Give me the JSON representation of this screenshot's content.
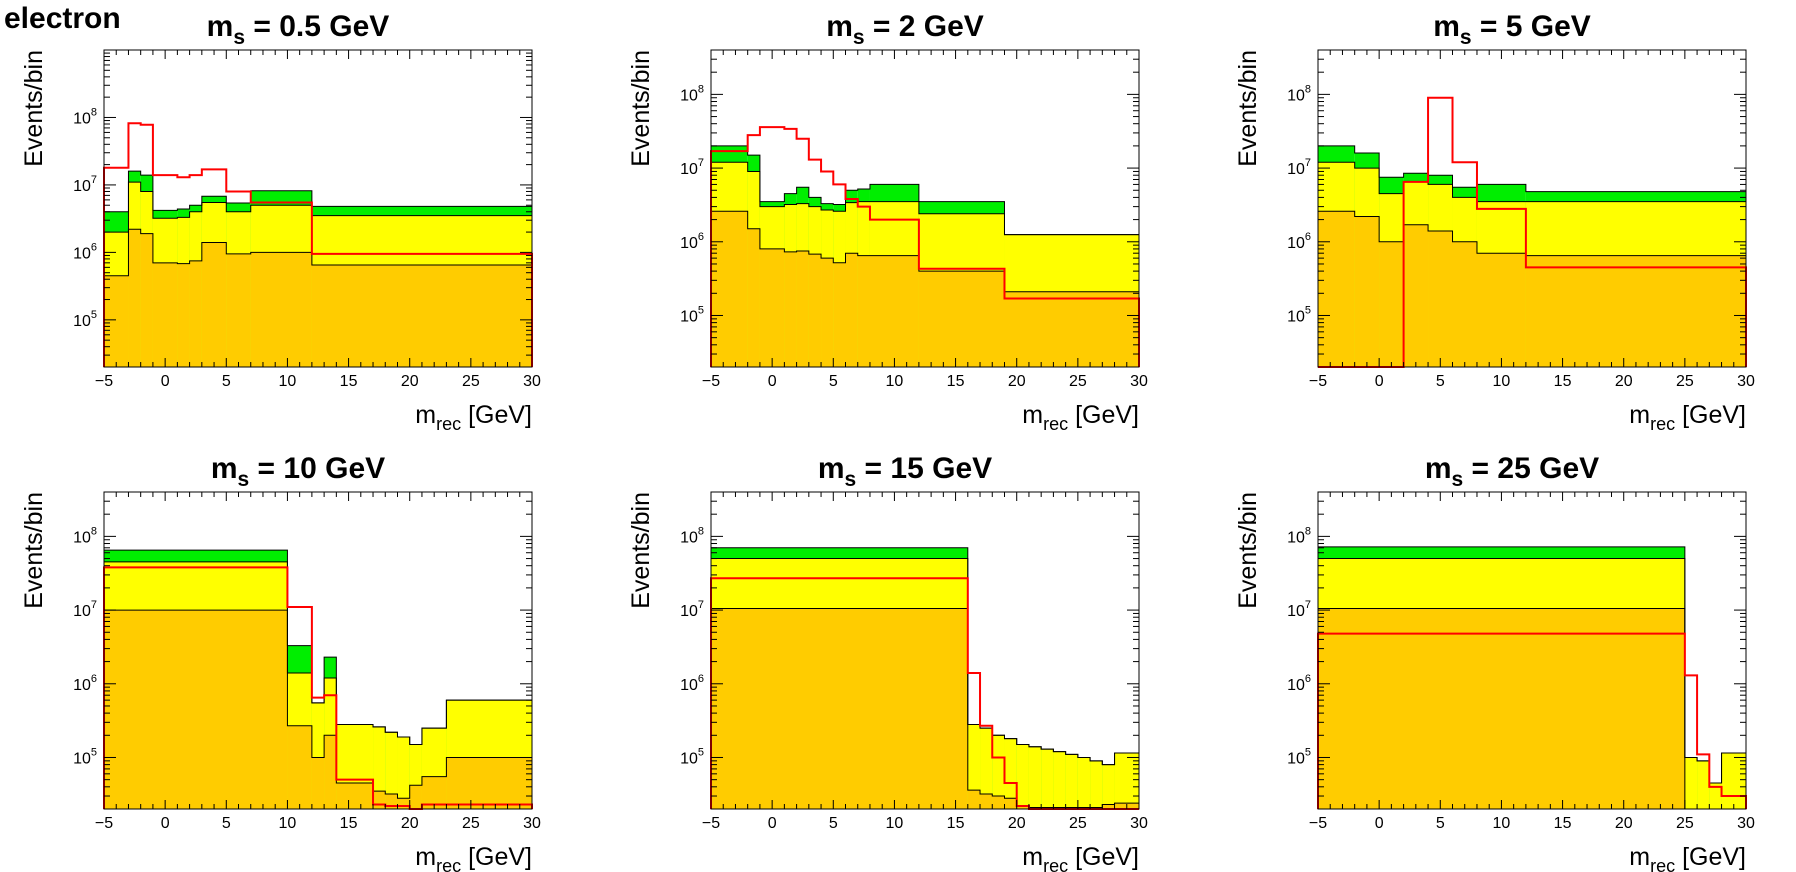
{
  "figure_label": "electron",
  "colors": {
    "stack_bottom": "#ffcc00",
    "stack_middle": "#ffff00",
    "stack_top": "#00ee00",
    "signal_line": "#ff0000",
    "outline": "#000000"
  },
  "chart_data": [
    {
      "type": "area",
      "title": "m_s = 0.5 GeV",
      "title_prefix": "m",
      "title_sub": "s",
      "title_rest": " = 0.5 GeV",
      "ylabel": "Events/bin",
      "xlabel_main": "m",
      "xlabel_sub": "rec",
      "xlabel_rest": " [GeV]",
      "xlim": [
        -5,
        30
      ],
      "ylim": [
        20000,
        1000000000
      ],
      "log_y": true,
      "grid": false,
      "x_ticks": [
        -5,
        0,
        5,
        10,
        15,
        20,
        25,
        30
      ],
      "y_ticks": [
        100000,
        1000000,
        10000000,
        100000000
      ],
      "y_tick_exponents": [
        "5",
        "6",
        "7",
        "8"
      ],
      "y_tick_base": "10",
      "bin_edges": [
        -5,
        -3,
        -2,
        -1,
        1,
        2,
        3,
        5,
        7,
        12,
        30
      ],
      "stack": [
        {
          "color_key": "stack_bottom",
          "values": [
            450000,
            2200000,
            1900000,
            700000,
            680000,
            750000,
            1400000,
            950000,
            1000000,
            650000
          ]
        },
        {
          "color_key": "stack_middle",
          "values": [
            2000000,
            11000000,
            8000000,
            3200000,
            3300000,
            4000000,
            5500000,
            4000000,
            5000000,
            3500000
          ]
        },
        {
          "color_key": "stack_top",
          "values": [
            4000000,
            16000000,
            14000000,
            4200000,
            4400000,
            5000000,
            6800000,
            5400000,
            8200000,
            4800000
          ]
        }
      ],
      "signal": [
        18000000,
        82000000,
        78000000,
        14000000,
        13000000,
        14000000,
        17000000,
        8000000,
        5500000,
        950000
      ]
    },
    {
      "type": "area",
      "title": "m_s = 2 GeV",
      "title_prefix": "m",
      "title_sub": "s",
      "title_rest": " = 2 GeV",
      "ylabel": "Events/bin",
      "xlabel_main": "m",
      "xlabel_sub": "rec",
      "xlabel_rest": " [GeV]",
      "xlim": [
        -5,
        30
      ],
      "ylim": [
        20000,
        400000000
      ],
      "log_y": true,
      "grid": false,
      "x_ticks": [
        -5,
        0,
        5,
        10,
        15,
        20,
        25,
        30
      ],
      "y_ticks": [
        100000,
        1000000,
        10000000,
        100000000
      ],
      "y_tick_exponents": [
        "5",
        "6",
        "7",
        "8"
      ],
      "y_tick_base": "10",
      "bin_edges": [
        -5,
        -2,
        -1,
        1,
        2,
        3,
        4,
        5,
        6,
        7,
        8,
        12,
        19,
        30
      ],
      "stack": [
        {
          "color_key": "stack_bottom",
          "values": [
            2600000,
            1500000,
            800000,
            730000,
            750000,
            680000,
            600000,
            520000,
            700000,
            650000,
            650000,
            400000,
            210000
          ]
        },
        {
          "color_key": "stack_middle",
          "values": [
            12000000,
            9000000,
            3000000,
            3200000,
            3300000,
            3000000,
            2700000,
            2600000,
            3400000,
            3500000,
            3500000,
            2400000,
            1250000
          ]
        },
        {
          "color_key": "stack_top",
          "values": [
            20000000,
            15000000,
            3500000,
            4500000,
            5500000,
            4000000,
            3300000,
            3200000,
            5000000,
            5200000,
            6000000,
            3500000,
            1250000
          ]
        }
      ],
      "signal": [
        17000000,
        28000000,
        36000000,
        34000000,
        25000000,
        13000000,
        9000000,
        6000000,
        3800000,
        3000000,
        2000000,
        430000,
        170000
      ]
    },
    {
      "type": "area",
      "title": "m_s = 5 GeV",
      "title_prefix": "m",
      "title_sub": "s",
      "title_rest": " = 5 GeV",
      "ylabel": "Events/bin",
      "xlabel_main": "m",
      "xlabel_sub": "rec",
      "xlabel_rest": " [GeV]",
      "xlim": [
        -5,
        30
      ],
      "ylim": [
        20000,
        400000000
      ],
      "log_y": true,
      "grid": false,
      "x_ticks": [
        -5,
        0,
        5,
        10,
        15,
        20,
        25,
        30
      ],
      "y_ticks": [
        100000,
        1000000,
        10000000,
        100000000
      ],
      "y_tick_exponents": [
        "5",
        "6",
        "7",
        "8"
      ],
      "y_tick_base": "10",
      "bin_edges": [
        -5,
        -2,
        0,
        2,
        4,
        6,
        8,
        12,
        30
      ],
      "stack": [
        {
          "color_key": "stack_bottom",
          "values": [
            2600000,
            2200000,
            1000000,
            1700000,
            1400000,
            1000000,
            700000,
            650000
          ]
        },
        {
          "color_key": "stack_middle",
          "values": [
            12000000,
            10000000,
            4500000,
            6500000,
            6000000,
            4000000,
            3500000,
            3500000
          ]
        },
        {
          "color_key": "stack_top",
          "values": [
            20000000,
            16000000,
            7500000,
            8500000,
            8000000,
            5500000,
            6000000,
            4800000
          ]
        }
      ],
      "signal": [
        20000,
        20000,
        20000,
        6500000,
        90000000,
        12000000,
        2800000,
        450000
      ]
    },
    {
      "type": "area",
      "title": "m_s = 10 GeV",
      "title_prefix": "m",
      "title_sub": "s",
      "title_rest": " = 10 GeV",
      "ylabel": "Events/bin",
      "xlabel_main": "m",
      "xlabel_sub": "rec",
      "xlabel_rest": " [GeV]",
      "xlim": [
        -5,
        30
      ],
      "ylim": [
        20000,
        400000000
      ],
      "log_y": true,
      "grid": false,
      "x_ticks": [
        -5,
        0,
        5,
        10,
        15,
        20,
        25,
        30
      ],
      "y_ticks": [
        100000,
        1000000,
        10000000,
        100000000
      ],
      "y_tick_exponents": [
        "5",
        "6",
        "7",
        "8"
      ],
      "y_tick_base": "10",
      "bin_edges": [
        -5,
        10,
        12,
        13,
        14,
        17,
        18,
        19,
        20,
        21,
        23,
        30
      ],
      "stack": [
        {
          "color_key": "stack_bottom",
          "values": [
            10000000,
            270000,
            100000,
            200000,
            45000,
            35000,
            32000,
            28000,
            42000,
            55000,
            100000
          ]
        },
        {
          "color_key": "stack_middle",
          "values": [
            45000000,
            1400000,
            550000,
            1200000,
            280000,
            260000,
            220000,
            190000,
            150000,
            250000,
            600000
          ]
        },
        {
          "color_key": "stack_top",
          "values": [
            65000000,
            3300000,
            550000,
            2300000,
            280000,
            260000,
            220000,
            190000,
            150000,
            250000,
            600000
          ]
        }
      ],
      "signal": [
        38000000,
        11000000,
        650000,
        700000,
        50000,
        23000,
        22000,
        22000,
        20000,
        23000,
        23000
      ]
    },
    {
      "type": "area",
      "title": "m_s = 15 GeV",
      "title_prefix": "m",
      "title_sub": "s",
      "title_rest": " = 15 GeV",
      "ylabel": "Events/bin",
      "xlabel_main": "m",
      "xlabel_sub": "rec",
      "xlabel_rest": " [GeV]",
      "xlim": [
        -5,
        30
      ],
      "ylim": [
        20000,
        400000000
      ],
      "log_y": true,
      "grid": false,
      "x_ticks": [
        -5,
        0,
        5,
        10,
        15,
        20,
        25,
        30
      ],
      "y_ticks": [
        100000,
        1000000,
        10000000,
        100000000
      ],
      "y_tick_exponents": [
        "5",
        "6",
        "7",
        "8"
      ],
      "y_tick_base": "10",
      "bin_edges": [
        -5,
        16,
        17,
        18,
        19,
        20,
        21,
        22,
        23,
        24,
        25,
        26,
        27,
        28,
        30
      ],
      "stack": [
        {
          "color_key": "stack_bottom",
          "values": [
            10500000,
            36000,
            32000,
            30000,
            28000,
            22000,
            21000,
            21000,
            21000,
            21000,
            21000,
            21000,
            23000,
            24000
          ]
        },
        {
          "color_key": "stack_middle",
          "values": [
            50000000,
            280000,
            250000,
            200000,
            180000,
            150000,
            140000,
            130000,
            120000,
            110000,
            100000,
            90000,
            80000,
            115000
          ]
        },
        {
          "color_key": "stack_top",
          "values": [
            70000000,
            280000,
            250000,
            200000,
            180000,
            150000,
            140000,
            130000,
            120000,
            110000,
            100000,
            90000,
            80000,
            115000
          ]
        }
      ],
      "signal": [
        27000000,
        1400000,
        270000,
        100000,
        45000,
        22000,
        20000,
        20000,
        20000,
        20000,
        20000,
        20000,
        20000,
        20000
      ]
    },
    {
      "type": "area",
      "title": "m_s = 25 GeV",
      "title_prefix": "m",
      "title_sub": "s",
      "title_rest": " = 25 GeV",
      "ylabel": "Events/bin",
      "xlabel_main": "m",
      "xlabel_sub": "rec",
      "xlabel_rest": " [GeV]",
      "xlim": [
        -5,
        30
      ],
      "ylim": [
        20000,
        400000000
      ],
      "log_y": true,
      "grid": false,
      "x_ticks": [
        -5,
        0,
        5,
        10,
        15,
        20,
        25,
        30
      ],
      "y_ticks": [
        100000,
        1000000,
        10000000,
        100000000
      ],
      "y_tick_exponents": [
        "5",
        "6",
        "7",
        "8"
      ],
      "y_tick_base": "10",
      "bin_edges": [
        -5,
        25,
        26,
        27,
        28,
        30
      ],
      "stack": [
        {
          "color_key": "stack_bottom",
          "values": [
            10500000,
            20000,
            20000,
            20000,
            20000
          ]
        },
        {
          "color_key": "stack_middle",
          "values": [
            50000000,
            100000,
            90000,
            45000,
            115000
          ]
        },
        {
          "color_key": "stack_top",
          "values": [
            72000000,
            100000,
            90000,
            45000,
            115000
          ]
        }
      ],
      "signal": [
        4800000,
        1300000,
        110000,
        40000,
        30000
      ]
    }
  ]
}
